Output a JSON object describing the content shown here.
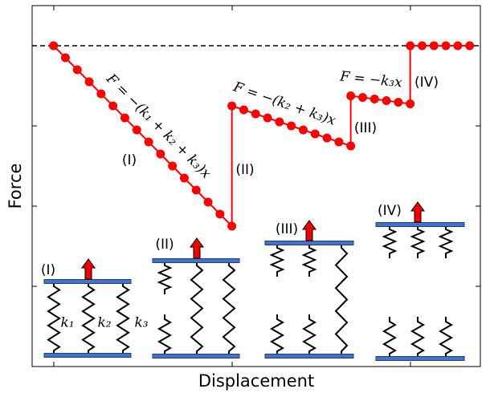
{
  "chart_data": {
    "type": "line",
    "x_label": "Displacement",
    "y_label": "Force",
    "x": [
      0,
      1,
      2,
      3,
      4,
      5,
      6,
      7,
      8,
      9,
      10,
      11,
      12,
      13,
      14,
      15,
      15,
      16,
      17,
      18,
      19,
      20,
      21,
      22,
      23,
      24,
      25,
      25,
      26,
      27,
      28,
      29,
      30,
      30,
      31,
      32,
      33,
      34,
      35
    ],
    "values": [
      0,
      -0.6,
      -1.2,
      -1.8,
      -2.4,
      -3,
      -3.6,
      -4.2,
      -4.8,
      -5.4,
      -6,
      -6.6,
      -7.2,
      -7.8,
      -8.4,
      -9,
      -3,
      -3.2,
      -3.4,
      -3.6,
      -3.8,
      -4,
      -4.2,
      -4.4,
      -4.6,
      -4.8,
      -5,
      -2.5,
      -2.58,
      -2.66,
      -2.74,
      -2.82,
      -2.9,
      0,
      0,
      0,
      0,
      0,
      0
    ],
    "color": "#ff0000",
    "reference_line": 0,
    "xlim": [
      -1.8,
      35.9
    ],
    "ylim": [
      -16,
      2
    ],
    "annotations": [
      {
        "text": "F = −(k₁ + k₂ + k₃)x",
        "kind": "equation"
      },
      {
        "text": "F = −(k₂ + k₃)x",
        "kind": "equation"
      },
      {
        "text": "F = −k₃x",
        "kind": "equation"
      },
      {
        "text": "(I)",
        "kind": "label"
      },
      {
        "text": "(II)",
        "kind": "label"
      },
      {
        "text": "(III)",
        "kind": "label"
      },
      {
        "text": "(IV)",
        "kind": "label"
      }
    ]
  },
  "diagram": {
    "panels": [
      "(I)",
      "(II)",
      "(III)",
      "(IV)"
    ],
    "springs": [
      "k₁",
      "k₂",
      "k₃"
    ]
  }
}
